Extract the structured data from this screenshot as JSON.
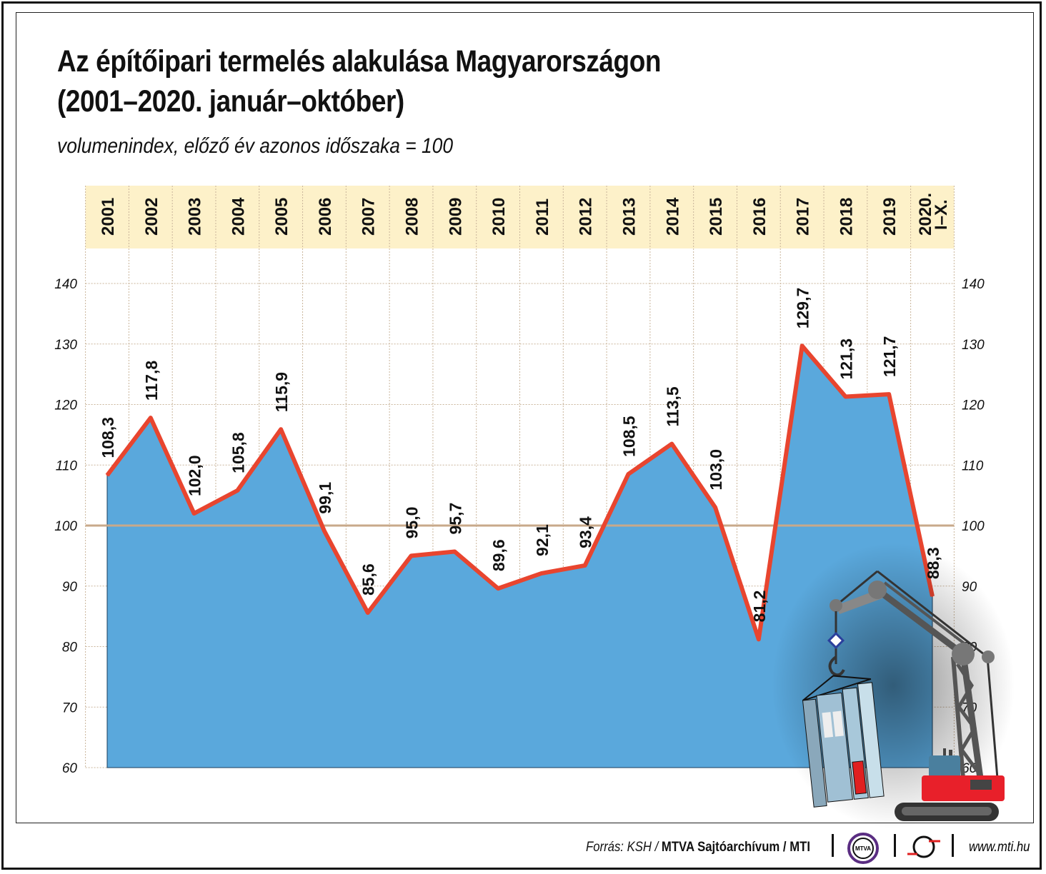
{
  "title_line1": "Az építőipari termelés alakulása Magyarországon",
  "title_line2": "(2001–2020. január–október)",
  "subtitle": "volumenindex, előző év azonos időszaka = 100",
  "footer": {
    "source_prefix": "Forrás: KSH / ",
    "source_bold": "MTVA Sajtóarchívum / MTI",
    "url": "www.mti.hu",
    "logo_mtva": "MTVA"
  },
  "colors": {
    "area": "#5aa8dc",
    "line": "#e8452f",
    "header_band": "#fdf1c9",
    "reference_line": "#c8a98a"
  },
  "chart_data": {
    "type": "area",
    "categories": [
      "2001",
      "2002",
      "2003",
      "2004",
      "2005",
      "2006",
      "2007",
      "2008",
      "2009",
      "2010",
      "2011",
      "2012",
      "2013",
      "2014",
      "2015",
      "2016",
      "2017",
      "2018",
      "2019",
      "2020. I–X."
    ],
    "values": [
      108.3,
      117.8,
      102.0,
      105.8,
      115.9,
      99.1,
      85.6,
      95.0,
      95.7,
      89.6,
      92.1,
      93.4,
      108.5,
      113.5,
      103.0,
      81.2,
      129.7,
      121.3,
      121.7,
      88.3
    ],
    "data_labels": [
      "108,3",
      "117,8",
      "102,0",
      "105,8",
      "115,9",
      "99,1",
      "85,6",
      "95,0",
      "95,7",
      "89,6",
      "92,1",
      "93,4",
      "108,5",
      "113,5",
      "103,0",
      "81,2",
      "129,7",
      "121,3",
      "121,7",
      "88,3"
    ],
    "ylim": [
      60,
      140
    ],
    "yticks": [
      60,
      70,
      80,
      90,
      100,
      110,
      120,
      130,
      140
    ],
    "reference_value": 100,
    "grid": true,
    "axes_labels_both_sides": true
  }
}
